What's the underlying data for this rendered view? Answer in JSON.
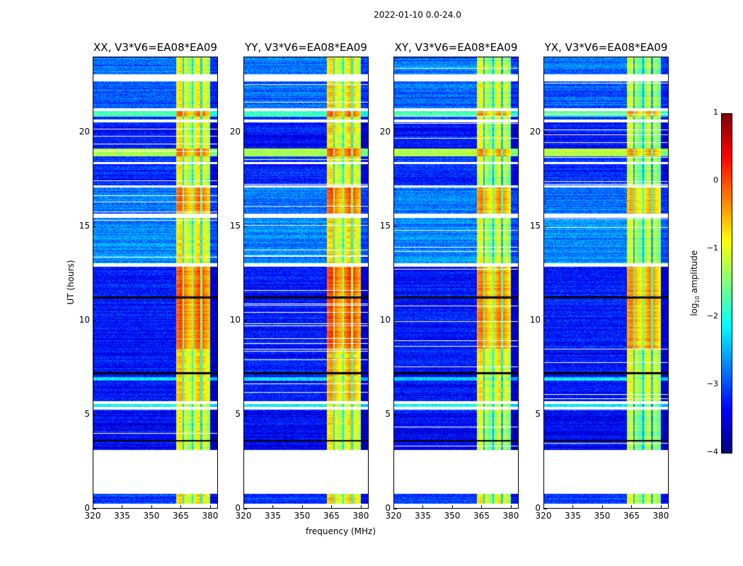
{
  "chart_data": {
    "type": "heatmap",
    "title": "2022-01-10 0.0-24.0",
    "xlabel": "frequency (MHz)",
    "ylabel": "UT (hours)",
    "xlim": [
      320,
      384
    ],
    "ylim": [
      0,
      24
    ],
    "xticks": [
      "320",
      "335",
      "350",
      "365",
      "380"
    ],
    "xtick_values": [
      320,
      335,
      350,
      365,
      380
    ],
    "yticks": [
      "0",
      "5",
      "10",
      "15",
      "20"
    ],
    "ytick_values": [
      0,
      5,
      10,
      15,
      20
    ],
    "panels": [
      {
        "title": "XX, V3*V6=EA08*EA09",
        "seed": 11,
        "block_offset": 0.0
      },
      {
        "title": "YY, V3*V6=EA08*EA09",
        "seed": 23,
        "block_offset": 0.1
      },
      {
        "title": "XY, V3*V6=EA08*EA09",
        "seed": 37,
        "block_offset": -0.2
      },
      {
        "title": "YX, V3*V6=EA08*EA09",
        "seed": 51,
        "block_offset": -0.3
      }
    ],
    "rfi_block_MHz": [
      362.5,
      380
    ],
    "rfi_dark_channels_MHz": [
      366.3,
      371,
      375.6
    ],
    "gaps_hours": [
      [
        0,
        0.25
      ],
      [
        0.8,
        3.1
      ],
      [
        5.25,
        5.4
      ],
      [
        5.55,
        5.7
      ],
      [
        12.85,
        13.05
      ],
      [
        15.45,
        15.65
      ],
      [
        17.05,
        17.15
      ],
      [
        18.3,
        18.4
      ],
      [
        20.5,
        20.65
      ],
      [
        21.1,
        21.25
      ],
      [
        22.7,
        23.05
      ]
    ],
    "bands_hours": [
      {
        "range": [
          3.1,
          5.2
        ],
        "background": -3.4,
        "block": -1.1
      },
      {
        "range": [
          5.4,
          5.55
        ],
        "background": -2.1,
        "block": -1.2
      },
      {
        "range": [
          5.7,
          8.5
        ],
        "background": -3.3,
        "block": -0.8
      },
      {
        "range": [
          6.8,
          7.0
        ],
        "background": -2.2,
        "block": -1.0
      },
      {
        "range": [
          8.5,
          12.85
        ],
        "background": -3.3,
        "block": -0.3
      },
      {
        "range": [
          13.05,
          15.45
        ],
        "background": -2.7,
        "block": -1.0
      },
      {
        "range": [
          15.65,
          17.05
        ],
        "background": -2.8,
        "block": -0.4
      },
      {
        "range": [
          17.15,
          18.3
        ],
        "background": -3.2,
        "block": -1.1
      },
      {
        "range": [
          18.7,
          19.1
        ],
        "background": -1.2,
        "block": -0.3
      },
      {
        "range": [
          19.1,
          20.5
        ],
        "background": -3.3,
        "block": -1.0
      },
      {
        "range": [
          20.8,
          21.1
        ],
        "background": -1.8,
        "block": -0.4
      },
      {
        "range": [
          21.25,
          22.7
        ],
        "background": -2.9,
        "block": -1.0
      },
      {
        "range": [
          23.05,
          24.0
        ],
        "background": -2.8,
        "block": -1.1
      },
      {
        "range": [
          0.25,
          0.8
        ],
        "background": -3.1,
        "block": -0.9
      }
    ],
    "dark_lines_hours": [
      3.6,
      7.2,
      11.2
    ],
    "colorbar": {
      "label": "log10 amplitude",
      "label_main": "log",
      "label_sub": "10",
      "label_rest": " amplitude",
      "range": [
        -4,
        1
      ],
      "ticks": [
        "1",
        "0",
        "−1",
        "−2",
        "−3",
        "−4"
      ],
      "tick_values": [
        1,
        0,
        -1,
        -2,
        -3,
        -4
      ],
      "colormap": "jet"
    }
  }
}
